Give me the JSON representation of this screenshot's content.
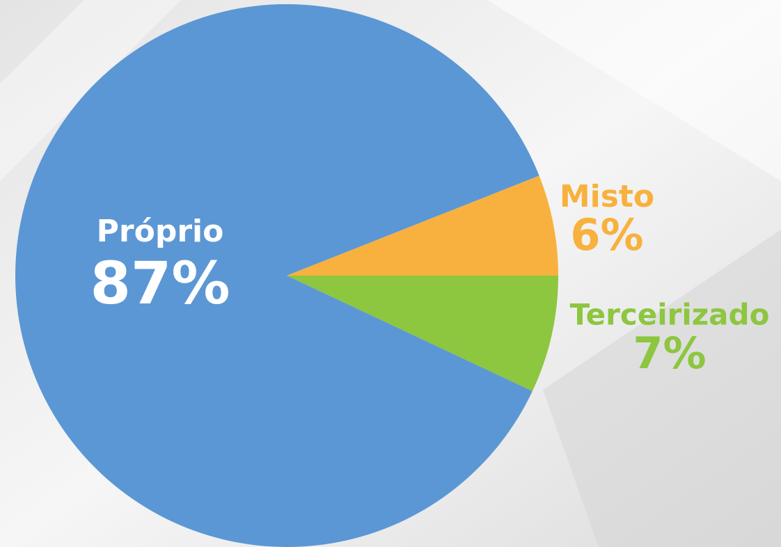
{
  "chart_data": {
    "type": "pie",
    "categories": [
      "Misto",
      "Próprio",
      "Terceirizado"
    ],
    "values": [
      6,
      87,
      7
    ],
    "value_labels": [
      "6%",
      "87%",
      "7%"
    ],
    "colors": [
      "#f8b13e",
      "#5b97d5",
      "#8dc63f"
    ]
  }
}
